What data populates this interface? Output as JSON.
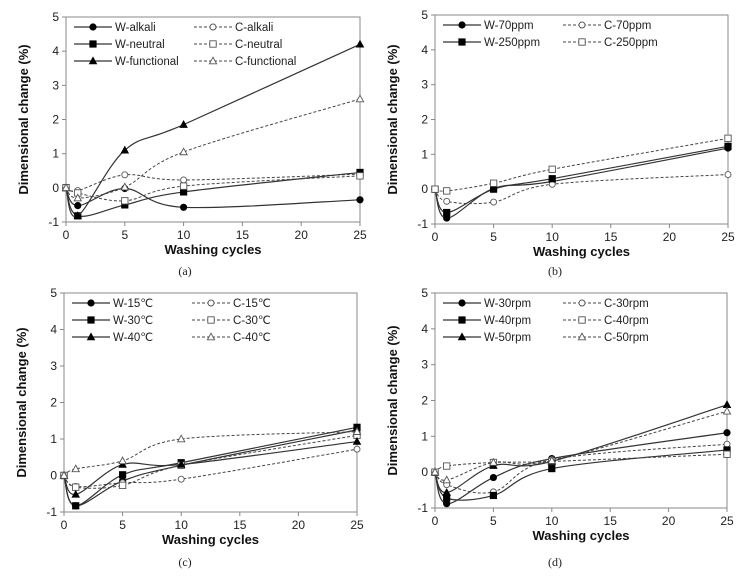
{
  "chart_data": [
    {
      "type": "line",
      "panel_label": "(a)",
      "xlabel": "Washing cycles",
      "ylabel": "Dimensional change (%)",
      "x": [
        0,
        1,
        5,
        10,
        25
      ],
      "xlim": [
        0,
        25
      ],
      "ylim": [
        -1,
        5
      ],
      "xticks": [
        "0",
        "5",
        "10",
        "15",
        "20",
        "25"
      ],
      "yticks": [
        "-1",
        "0",
        "1",
        "2",
        "3",
        "4",
        "5"
      ],
      "grid": false,
      "legend": "top-left",
      "series": [
        {
          "name": "W-alkali",
          "marker": "circle",
          "style": "solid",
          "values": [
            0,
            -0.52,
            -0.02,
            -0.57,
            -0.35
          ]
        },
        {
          "name": "C-alkali",
          "marker": "circle",
          "style": "dashed",
          "values": [
            0,
            -0.08,
            0.38,
            0.23,
            0.4
          ]
        },
        {
          "name": "W-neutral",
          "marker": "square",
          "style": "solid",
          "values": [
            0,
            -0.82,
            -0.5,
            -0.12,
            0.45
          ]
        },
        {
          "name": "C-neutral",
          "marker": "square",
          "style": "dashed",
          "values": [
            0,
            -0.15,
            -0.38,
            0.05,
            0.35
          ]
        },
        {
          "name": "W-functional",
          "marker": "triangle",
          "style": "solid",
          "values": [
            0,
            -0.82,
            1.1,
            1.85,
            4.2
          ]
        },
        {
          "name": "C-functional",
          "marker": "triangle",
          "style": "dashed",
          "values": [
            0,
            -0.3,
            0.02,
            1.05,
            2.6
          ]
        }
      ]
    },
    {
      "type": "line",
      "panel_label": "(b)",
      "xlabel": "Washing cycles",
      "ylabel": "Dimensional change (%)",
      "x": [
        0,
        1,
        5,
        10,
        25
      ],
      "xlim": [
        0,
        25
      ],
      "ylim": [
        -1,
        5
      ],
      "xticks": [
        "0",
        "5",
        "10",
        "15",
        "20",
        "25"
      ],
      "yticks": [
        "-1",
        "0",
        "1",
        "2",
        "3",
        "4",
        "5"
      ],
      "grid": false,
      "legend": "top-left",
      "series": [
        {
          "name": "W-70ppm",
          "marker": "circle",
          "style": "solid",
          "values": [
            0,
            -0.83,
            0.02,
            0.22,
            1.18
          ]
        },
        {
          "name": "C-70ppm",
          "marker": "circle",
          "style": "dashed",
          "values": [
            0,
            -0.35,
            -0.37,
            0.14,
            0.42
          ]
        },
        {
          "name": "W-250ppm",
          "marker": "square",
          "style": "solid",
          "values": [
            0,
            -0.67,
            0.0,
            0.3,
            1.23
          ]
        },
        {
          "name": "C-250ppm",
          "marker": "square",
          "style": "dashed",
          "values": [
            0,
            -0.05,
            0.17,
            0.57,
            1.46
          ]
        }
      ]
    },
    {
      "type": "line",
      "panel_label": "(c)",
      "xlabel": "Washing cycles",
      "ylabel": "Dimensional change (%)",
      "x": [
        0,
        1,
        5,
        10,
        25
      ],
      "xlim": [
        0,
        25
      ],
      "ylim": [
        -1,
        5
      ],
      "xticks": [
        "0",
        "5",
        "10",
        "15",
        "20",
        "25"
      ],
      "yticks": [
        "-1",
        "0",
        "1",
        "2",
        "3",
        "4",
        "5"
      ],
      "grid": false,
      "legend": "top-left",
      "series": [
        {
          "name": "W-15℃",
          "marker": "circle",
          "style": "solid",
          "values": [
            0,
            -0.83,
            -0.15,
            0.28,
            1.25
          ]
        },
        {
          "name": "C-15℃",
          "marker": "circle",
          "style": "dashed",
          "values": [
            0,
            -0.3,
            -0.2,
            -0.1,
            0.72
          ]
        },
        {
          "name": "W-30℃",
          "marker": "square",
          "style": "solid",
          "values": [
            0,
            -0.83,
            0.02,
            0.35,
            1.32
          ]
        },
        {
          "name": "C-30℃",
          "marker": "square",
          "style": "dashed",
          "values": [
            0,
            -0.32,
            -0.27,
            0.28,
            1.1
          ]
        },
        {
          "name": "W-40℃",
          "marker": "triangle",
          "style": "solid",
          "values": [
            0,
            -0.52,
            0.3,
            0.3,
            0.93
          ]
        },
        {
          "name": "C-40℃",
          "marker": "triangle",
          "style": "dashed",
          "values": [
            0,
            0.18,
            0.4,
            1.0,
            1.2
          ]
        }
      ]
    },
    {
      "type": "line",
      "panel_label": "(d)",
      "xlabel": "Washing cycles",
      "ylabel": "Dimensional change (%)",
      "x": [
        0,
        1,
        5,
        10,
        25
      ],
      "xlim": [
        0,
        25
      ],
      "ylim": [
        -1,
        5
      ],
      "xticks": [
        "0",
        "5",
        "10",
        "15",
        "20",
        "25"
      ],
      "yticks": [
        "-1",
        "0",
        "1",
        "2",
        "3",
        "4",
        "5"
      ],
      "grid": false,
      "legend": "top-left",
      "series": [
        {
          "name": "W-30rpm",
          "marker": "circle",
          "style": "solid",
          "values": [
            0,
            -0.88,
            -0.15,
            0.38,
            1.1
          ]
        },
        {
          "name": "C-30rpm",
          "marker": "circle",
          "style": "dashed",
          "values": [
            0,
            -0.35,
            -0.55,
            0.35,
            0.78
          ]
        },
        {
          "name": "W-40rpm",
          "marker": "square",
          "style": "solid",
          "values": [
            0,
            -0.72,
            -0.65,
            0.1,
            0.62
          ]
        },
        {
          "name": "C-40rpm",
          "marker": "square",
          "style": "dashed",
          "values": [
            0,
            0.17,
            0.27,
            0.3,
            0.5
          ]
        },
        {
          "name": "W-50rpm",
          "marker": "triangle",
          "style": "solid",
          "values": [
            0,
            -0.57,
            0.18,
            0.3,
            1.88
          ]
        },
        {
          "name": "C-50rpm",
          "marker": "triangle",
          "style": "dashed",
          "values": [
            0,
            -0.22,
            0.27,
            0.32,
            1.7
          ]
        }
      ]
    }
  ]
}
